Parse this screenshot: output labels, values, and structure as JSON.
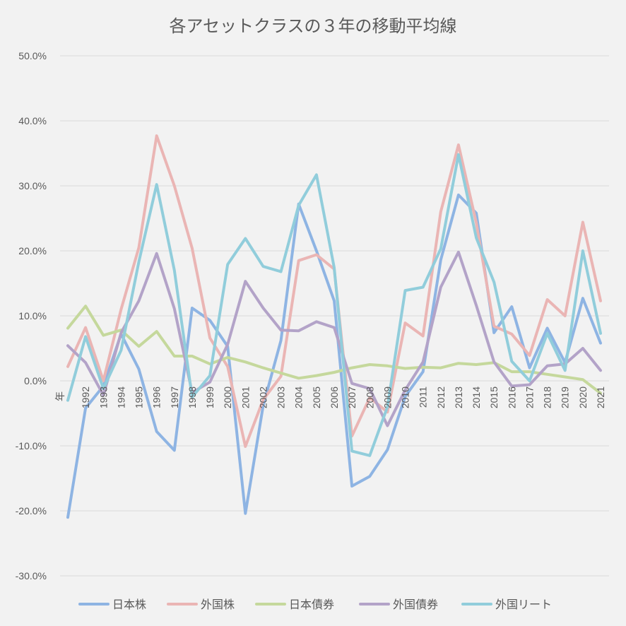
{
  "chart_data": {
    "type": "line",
    "title": "各アセットクラスの３年の移動平均線",
    "x_axis_first_label": "年",
    "categories": [
      "",
      "1992",
      "1993",
      "1994",
      "1995",
      "1996",
      "1997",
      "1998",
      "1999",
      "2000",
      "2001",
      "2002",
      "2003",
      "2004",
      "2005",
      "2006",
      "2007",
      "2008",
      "2009",
      "2010",
      "2011",
      "2012",
      "2013",
      "2014",
      "2015",
      "2016",
      "2017",
      "2018",
      "2019",
      "2020",
      "2021"
    ],
    "ylim": [
      -30,
      50
    ],
    "yticks": [
      -30,
      -20,
      -10,
      0,
      10,
      20,
      30,
      40,
      50
    ],
    "ytick_labels": [
      "-30.0%",
      "-20.0%",
      "-10.0%",
      "0.0%",
      "10.0%",
      "20.0%",
      "30.0%",
      "40.0%",
      "50.0%"
    ],
    "grid": true,
    "legend_position": "bottom",
    "series": [
      {
        "name": "日本株",
        "color": "#8eb4e3",
        "values": [
          -21,
          -4.2,
          -0.8,
          7.2,
          1.8,
          -7.8,
          -10.7,
          11.2,
          9.3,
          5.3,
          -20.4,
          -3.8,
          6.2,
          27.2,
          20,
          12.3,
          -16.2,
          -14.7,
          -10.6,
          -2.4,
          1.4,
          18.6,
          28.6,
          25.8,
          7.4,
          11.4,
          2,
          8.1,
          2.8,
          12.7,
          5.8
        ]
      },
      {
        "name": "外国株",
        "color": "#eab5b4",
        "values": [
          2.2,
          8.2,
          0,
          11,
          20.5,
          37.7,
          30,
          20.4,
          6.6,
          2.2,
          -10.1,
          -2.9,
          0.7,
          18.5,
          19.4,
          17.2,
          -8.5,
          -2.6,
          -4.8,
          8.9,
          6.9,
          26,
          36.3,
          24.3,
          8.4,
          7.2,
          3.9,
          12.5,
          10,
          24.4,
          12.3
        ]
      },
      {
        "name": "日本債券",
        "color": "#c5d89c",
        "values": [
          8.1,
          11.5,
          7,
          7.8,
          5.3,
          7.6,
          3.8,
          3.8,
          2.6,
          3.6,
          2.9,
          2,
          1.2,
          0.4,
          0.8,
          1.3,
          2,
          2.5,
          2.3,
          1.9,
          2.1,
          2,
          2.7,
          2.5,
          2.8,
          1.4,
          1.4,
          1,
          0.6,
          0.2,
          -1.9
        ]
      },
      {
        "name": "外国債券",
        "color": "#b3a3c8",
        "values": [
          5.4,
          2.8,
          -2.2,
          7.4,
          12.3,
          19.6,
          11.1,
          -1.8,
          -0.2,
          5.6,
          15.3,
          11.2,
          7.8,
          7.7,
          9.1,
          8.2,
          -0.4,
          -1.2,
          -6.9,
          -1.4,
          2.9,
          14.4,
          19.8,
          11.6,
          2.9,
          -0.8,
          -0.6,
          2.3,
          2.6,
          5,
          1.6
        ]
      },
      {
        "name": "外国リート",
        "color": "#91cddb",
        "values": [
          -3,
          6.8,
          -1.2,
          4.7,
          18.3,
          30.2,
          17,
          -2.5,
          0.8,
          17.9,
          21.9,
          17.6,
          16.8,
          27,
          31.7,
          17.4,
          -10.8,
          -11.5,
          -4,
          13.9,
          14.4,
          20.3,
          34.8,
          22,
          15.2,
          3,
          0,
          7.3,
          1.6,
          20,
          7.3
        ]
      }
    ]
  }
}
